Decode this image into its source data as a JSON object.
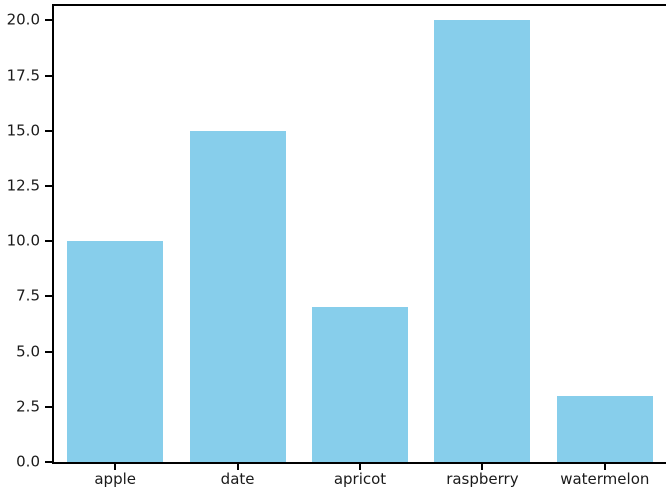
{
  "figure": {
    "background": "#ffffff"
  },
  "chart_data": {
    "type": "bar",
    "categories": [
      "apple",
      "date",
      "apricot",
      "raspberry",
      "watermelon"
    ],
    "values": [
      10,
      15,
      7,
      20,
      3
    ],
    "title": "",
    "xlabel": "",
    "ylabel": "",
    "ylim": [
      0,
      20.7
    ],
    "yticks": [
      0,
      2.5,
      5,
      7.5,
      10,
      12.5,
      15,
      17.5,
      20
    ],
    "ytick_labels": [
      "0.0",
      "2.5",
      "5.0",
      "7.5",
      "10.0",
      "12.5",
      "15.0",
      "17.5",
      "20.0"
    ],
    "grid": false,
    "legend": false,
    "bar_color": "#87CEEB",
    "axis_color": "#000000",
    "tick_label_color": "#1a1a1a"
  }
}
